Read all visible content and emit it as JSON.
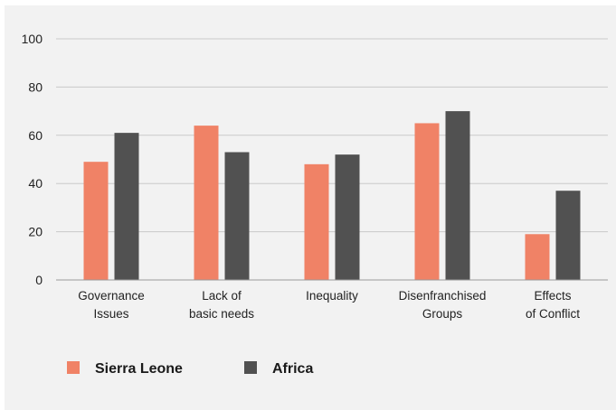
{
  "chart_data": {
    "type": "bar",
    "categories": [
      [
        "Governance",
        "Issues"
      ],
      [
        "Lack of",
        "basic needs"
      ],
      [
        "Inequality"
      ],
      [
        "Disenfranchised",
        "Groups"
      ],
      [
        "Effects",
        "of Conflict"
      ]
    ],
    "series": [
      {
        "name": "Sierra Leone",
        "color": "#f08266",
        "values": [
          49,
          64,
          48,
          65,
          19
        ]
      },
      {
        "name": "Africa",
        "color": "#515151",
        "values": [
          61,
          53,
          52,
          70,
          37
        ]
      }
    ],
    "ylim": [
      0,
      100
    ],
    "yticks": [
      0,
      20,
      40,
      60,
      80,
      100
    ],
    "grid": true,
    "legend": "bottom-left"
  }
}
